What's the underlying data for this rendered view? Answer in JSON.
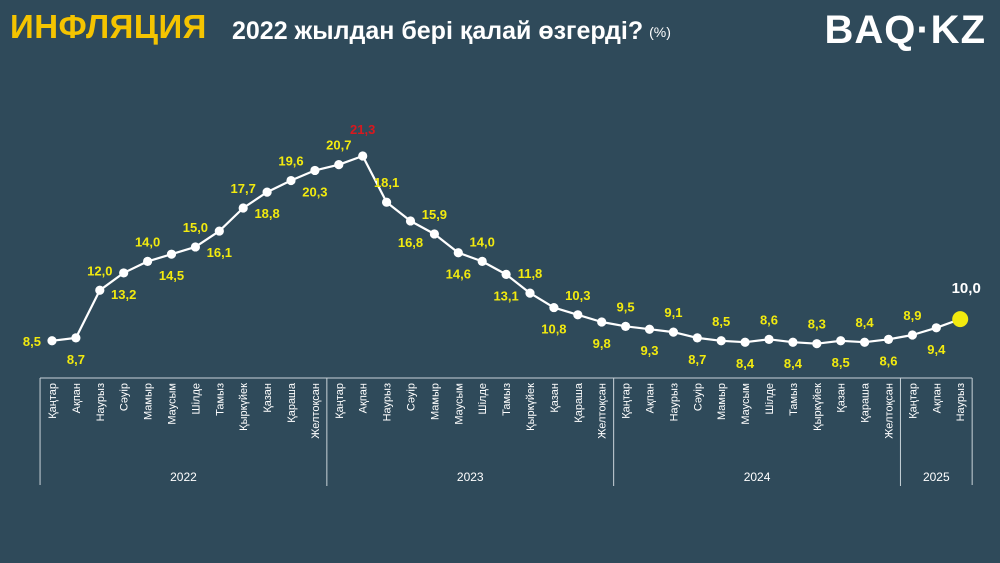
{
  "header": {
    "title": "ИНФЛЯЦИЯ",
    "subtitle": "2022 жылдан бері қалай өзгерді?",
    "unit": "(%)",
    "logo": "BAQ·KZ"
  },
  "colors": {
    "background": "#2f4a5a",
    "title": "#f5c400",
    "label": "#f2ea0f",
    "peak": "#d9181e",
    "line": "#ffffff",
    "last_point": "#f2ea0f"
  },
  "chart_data": {
    "type": "line",
    "title": "ИНФЛЯЦИЯ 2022 жылдан бері қалай өзгерді? (%)",
    "x": [
      "Қаңтар",
      "Ақпан",
      "Наурыз",
      "Сәуір",
      "Мамыр",
      "Маусым",
      "Шілде",
      "Тамыз",
      "Қыркүйек",
      "Қазан",
      "Қараша",
      "Желтоқсан",
      "Қаңтар",
      "Ақпан",
      "Наурыз",
      "Сәуір",
      "Мамыр",
      "Маусым",
      "Шілде",
      "Тамыз",
      "Қыркүйек",
      "Қазан",
      "Қараша",
      "Желтоқсан",
      "Қаңтар",
      "Ақпан",
      "Наурыз",
      "Сәуір",
      "Мамыр",
      "Маусым",
      "Шілде",
      "Тамыз",
      "Қыркүйек",
      "Қазан",
      "Қараша",
      "Желтоқсан",
      "Қаңтар",
      "Ақпан",
      "Наурыз"
    ],
    "values": [
      8.5,
      8.7,
      12.0,
      13.2,
      14.0,
      14.5,
      15.0,
      16.1,
      17.7,
      18.8,
      19.6,
      20.3,
      20.7,
      21.3,
      18.1,
      16.8,
      15.9,
      14.6,
      14.0,
      13.1,
      11.8,
      10.8,
      10.3,
      9.8,
      9.5,
      9.3,
      9.1,
      8.7,
      8.5,
      8.4,
      8.6,
      8.4,
      8.3,
      8.5,
      8.4,
      8.6,
      8.9,
      9.4,
      10.0
    ],
    "labels": [
      "8,5",
      "8,7",
      "12,0",
      "13,2",
      "14,0",
      "14,5",
      "15,0",
      "16,1",
      "17,7",
      "18,8",
      "19,6",
      "20,3",
      "20,7",
      "21,3",
      "18,1",
      "16,8",
      "15,9",
      "14,6",
      "14,0",
      "13,1",
      "11,8",
      "10,8",
      "10,3",
      "9,8",
      "9,5",
      "9,3",
      "9,1",
      "8,7",
      "8,5",
      "8,4",
      "8,6",
      "8,4",
      "8,3",
      "8,5",
      "8,4",
      "8,6",
      "8,9",
      "9,4",
      "10,0"
    ],
    "years": [
      {
        "label": "2022",
        "count": 12
      },
      {
        "label": "2023",
        "count": 12
      },
      {
        "label": "2024",
        "count": 12
      },
      {
        "label": "2025",
        "count": 3
      }
    ],
    "ylim": [
      8,
      21.3
    ],
    "xlabel": "",
    "ylabel": "",
    "grid": false,
    "legend": "none"
  }
}
